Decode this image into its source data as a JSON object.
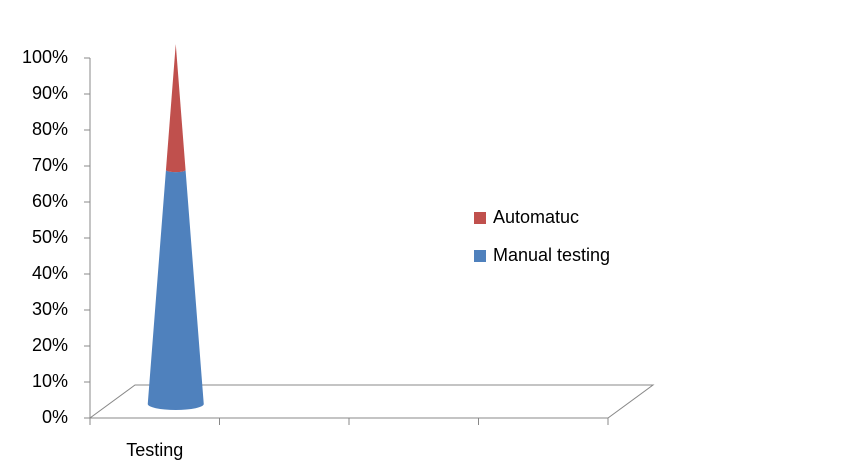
{
  "chart_data": {
    "type": "cone",
    "categories": [
      "Testing",
      null,
      null,
      null
    ],
    "series": [
      {
        "name": "Manual testing",
        "color": "#4f81bd",
        "values": [
          65,
          null,
          null,
          null
        ]
      },
      {
        "name": "Automatuc",
        "color": "#c0504d",
        "values": [
          35,
          null,
          null,
          null
        ]
      }
    ],
    "stacked": true,
    "ylim": [
      0,
      100
    ],
    "yticks": [
      {
        "value": 0,
        "label": "0%"
      },
      {
        "value": 10,
        "label": "10%"
      },
      {
        "value": 20,
        "label": "20%"
      },
      {
        "value": 30,
        "label": "30%"
      },
      {
        "value": 40,
        "label": "40%"
      },
      {
        "value": 50,
        "label": "50%"
      },
      {
        "value": 60,
        "label": "60%"
      },
      {
        "value": 70,
        "label": "70%"
      },
      {
        "value": 80,
        "label": "80%"
      },
      {
        "value": 90,
        "label": "90%"
      },
      {
        "value": 100,
        "label": "100%"
      }
    ],
    "legend": "right"
  }
}
